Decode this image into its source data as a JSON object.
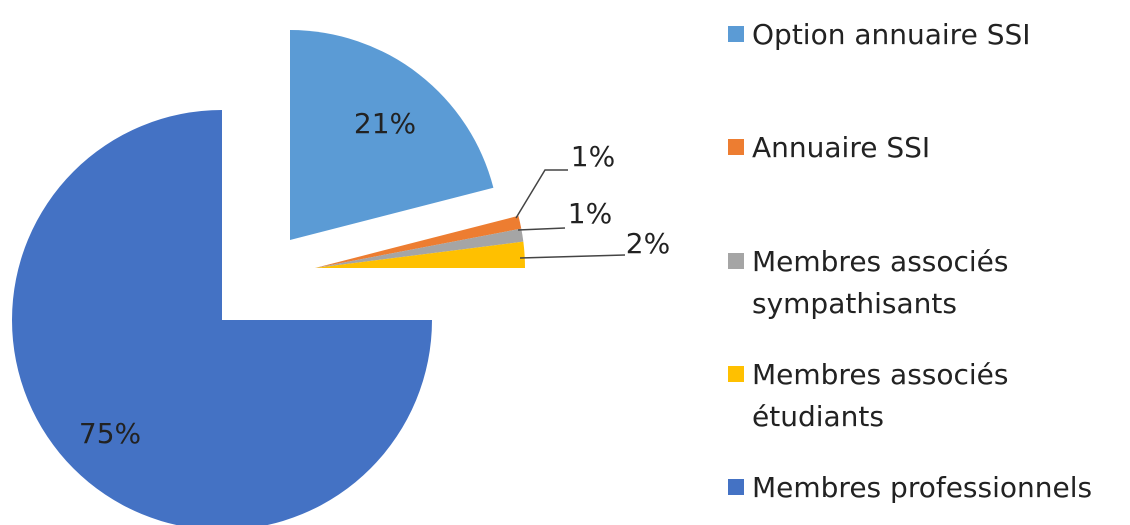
{
  "chart_data": {
    "type": "pie",
    "categories": [
      "Option annuaire SSI",
      "Annuaire SSI",
      "Membres associés sympathisants",
      "Membres associés étudiants",
      "Membres professionnels"
    ],
    "values": [
      21,
      1,
      1,
      2,
      75
    ],
    "value_labels": [
      "21%",
      "1%",
      "1%",
      "2%",
      "75%"
    ],
    "colors": [
      "#5b9bd5",
      "#ed7d31",
      "#a5a5a5",
      "#ffc000",
      "#4472c4"
    ],
    "legend": "right"
  }
}
